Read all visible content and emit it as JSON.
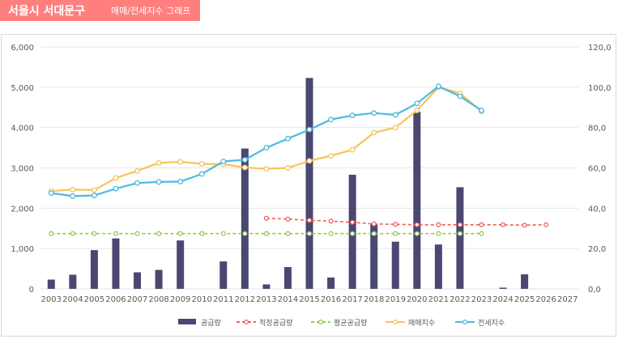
{
  "header": {
    "title": "서울시 서대문구",
    "subtitle": "매매/전세지수 그래프"
  },
  "colors": {
    "header_bg": "#ff7f7f",
    "supply": "#4a4873",
    "proper_supply": "#ee5f5b",
    "avg_supply": "#8ccf4d",
    "sale_index": "#f8c35a",
    "jeonse_index": "#4bbbdd"
  },
  "chart_data": {
    "type": "bar+line",
    "categories": [
      "2003",
      "2004",
      "2005",
      "2006",
      "2007",
      "2008",
      "2009",
      "2010",
      "2011",
      "2012",
      "2013",
      "2014",
      "2015",
      "2016",
      "2017",
      "2018",
      "2019",
      "2020",
      "2021",
      "2022",
      "2023",
      "2024",
      "2025",
      "2026",
      "2027"
    ],
    "y_left": {
      "min": 0,
      "max": 6000,
      "ticks": [
        "0",
        "1,000",
        "2,000",
        "3,000",
        "4,000",
        "5,000",
        "6,000"
      ]
    },
    "y_right": {
      "min": 0,
      "max": 120,
      "ticks": [
        "0,0",
        "20,0",
        "40,0",
        "60,0",
        "80,0",
        "100,0",
        "120,0"
      ]
    },
    "grid": true,
    "legend_position": "bottom",
    "series": [
      {
        "name": "공급량",
        "kind": "bar",
        "axis": "left",
        "values": [
          230,
          350,
          960,
          1250,
          410,
          470,
          1200,
          null,
          680,
          3480,
          110,
          540,
          5230,
          280,
          2830,
          1600,
          1170,
          4390,
          1100,
          2520,
          null,
          30,
          360,
          null,
          null
        ]
      },
      {
        "name": "적정공급량",
        "kind": "line",
        "axis": "left",
        "dashed": true,
        "values": [
          null,
          null,
          null,
          null,
          null,
          null,
          null,
          null,
          null,
          null,
          1750,
          1730,
          1700,
          1680,
          1650,
          1610,
          1600,
          1590,
          1590,
          1590,
          1590,
          1590,
          1580,
          1590,
          null
        ]
      },
      {
        "name": "평균공급량",
        "kind": "line",
        "axis": "left",
        "dashed": true,
        "values": [
          1370,
          1370,
          1370,
          1370,
          1370,
          1370,
          1370,
          1370,
          1370,
          1370,
          1370,
          1370,
          1370,
          1370,
          1370,
          1370,
          1370,
          1370,
          1370,
          1370,
          1370,
          null,
          null,
          null,
          null
        ]
      },
      {
        "name": "매매지수",
        "kind": "line",
        "axis": "right",
        "values": [
          48.5,
          49.2,
          49.0,
          55.0,
          58.5,
          62.5,
          63.0,
          62.0,
          61.8,
          60.2,
          59.5,
          60.0,
          63.5,
          66.0,
          69.0,
          77.5,
          80.0,
          88.5,
          100.0,
          97.0,
          88.0,
          null,
          null,
          null,
          null
        ]
      },
      {
        "name": "전세지수",
        "kind": "line",
        "axis": "right",
        "values": [
          47.5,
          46.0,
          46.3,
          49.7,
          52.5,
          53.0,
          53.2,
          57.0,
          63.2,
          64.0,
          70.0,
          74.5,
          79.0,
          84.0,
          86.0,
          87.2,
          86.3,
          92.0,
          100.5,
          95.5,
          88.5,
          null,
          null,
          null,
          null
        ]
      }
    ]
  }
}
